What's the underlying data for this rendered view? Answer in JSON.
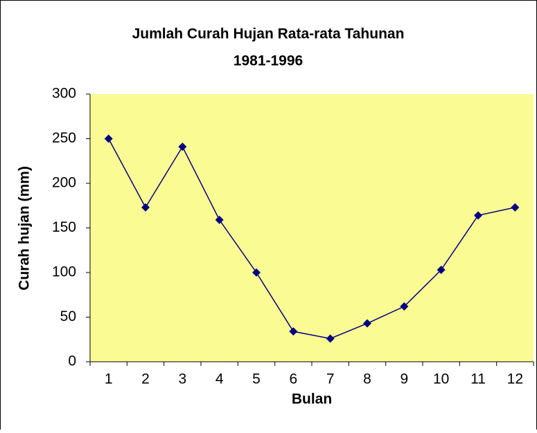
{
  "chart_data": {
    "type": "line",
    "title": "Jumlah Curah Hujan Rata-rata Tahunan",
    "subtitle": "1981-1996",
    "x_label": "Bulan",
    "y_label": "Curah hujan (mm)",
    "categories": [
      "1",
      "2",
      "3",
      "4",
      "5",
      "6",
      "7",
      "8",
      "9",
      "10",
      "11",
      "12"
    ],
    "values": [
      250,
      173,
      241,
      159,
      100,
      34,
      26,
      43,
      62,
      103,
      164,
      173
    ],
    "color": "#000080",
    "background": "#fbfb94",
    "ylim": [
      0,
      300
    ],
    "yticks": [
      0,
      50,
      100,
      150,
      200,
      250,
      300
    ],
    "grid": false
  }
}
